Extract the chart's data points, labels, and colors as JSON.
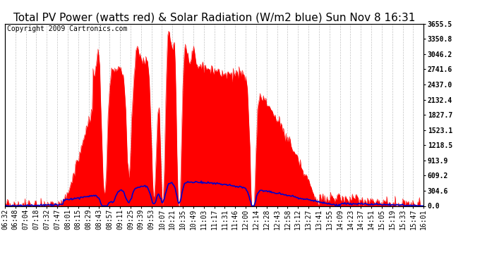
{
  "title": "Total PV Power (watts red) & Solar Radiation (W/m2 blue) Sun Nov 8 16:31",
  "copyright_text": "Copyright 2009 Cartronics.com",
  "y_max": 3655.5,
  "y_min": 0.0,
  "y_ticks": [
    0.0,
    304.6,
    609.2,
    913.9,
    1218.5,
    1523.1,
    1827.7,
    2132.4,
    2437.0,
    2741.6,
    3046.2,
    3350.8,
    3655.5
  ],
  "x_labels": [
    "06:32",
    "06:48",
    "07:04",
    "07:18",
    "07:32",
    "07:47",
    "08:01",
    "08:15",
    "08:29",
    "08:43",
    "08:57",
    "09:11",
    "09:25",
    "09:39",
    "09:53",
    "10:07",
    "10:21",
    "10:35",
    "10:49",
    "11:03",
    "11:17",
    "11:31",
    "11:46",
    "12:00",
    "12:14",
    "12:28",
    "12:43",
    "12:58",
    "13:12",
    "13:27",
    "13:41",
    "13:55",
    "14:09",
    "14:23",
    "14:37",
    "14:51",
    "15:05",
    "15:19",
    "15:33",
    "15:47",
    "16:01"
  ],
  "pv_color": "#ff0000",
  "solar_color": "#0000cc",
  "bg_color": "#ffffff",
  "grid_color": "#aaaaaa",
  "title_fontsize": 11,
  "axis_fontsize": 7,
  "copyright_fontsize": 7
}
